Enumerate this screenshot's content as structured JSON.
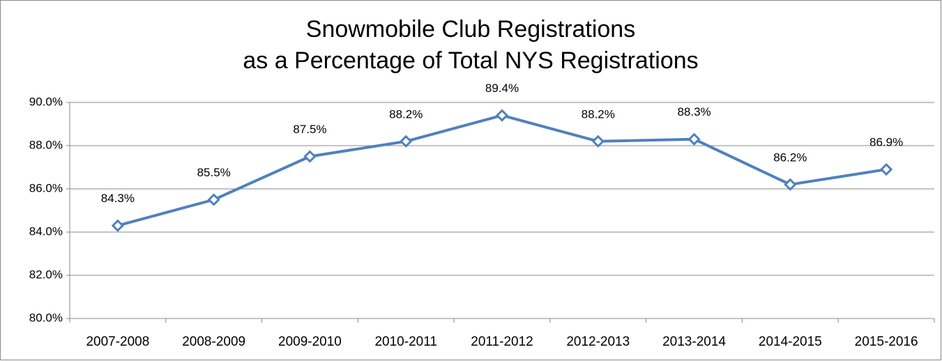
{
  "chart_data": {
    "type": "line",
    "title": [
      "Snowmobile Club Registrations",
      "as a Percentage of Total NYS Registrations"
    ],
    "categories": [
      "2007-2008",
      "2008-2009",
      "2009-2010",
      "2010-2011",
      "2011-2012",
      "2012-2013",
      "2013-2014",
      "2014-2015",
      "2015-2016"
    ],
    "values": [
      84.3,
      85.5,
      87.5,
      88.2,
      89.4,
      88.2,
      88.3,
      86.2,
      86.9
    ],
    "value_labels": [
      "84.3%",
      "85.5%",
      "87.5%",
      "88.2%",
      "89.4%",
      "88.2%",
      "88.3%",
      "86.2%",
      "86.9%"
    ],
    "color": "#4f81bd",
    "ylim": [
      80,
      90
    ],
    "yticks": [
      {
        "value": 80,
        "label": "80.0%"
      },
      {
        "value": 82,
        "label": "82.0%"
      },
      {
        "value": 84,
        "label": "84.0%"
      },
      {
        "value": 86,
        "label": "86.0%"
      },
      {
        "value": 88,
        "label": "88.0%"
      },
      {
        "value": 90,
        "label": "90.0%"
      }
    ],
    "grid": true
  }
}
